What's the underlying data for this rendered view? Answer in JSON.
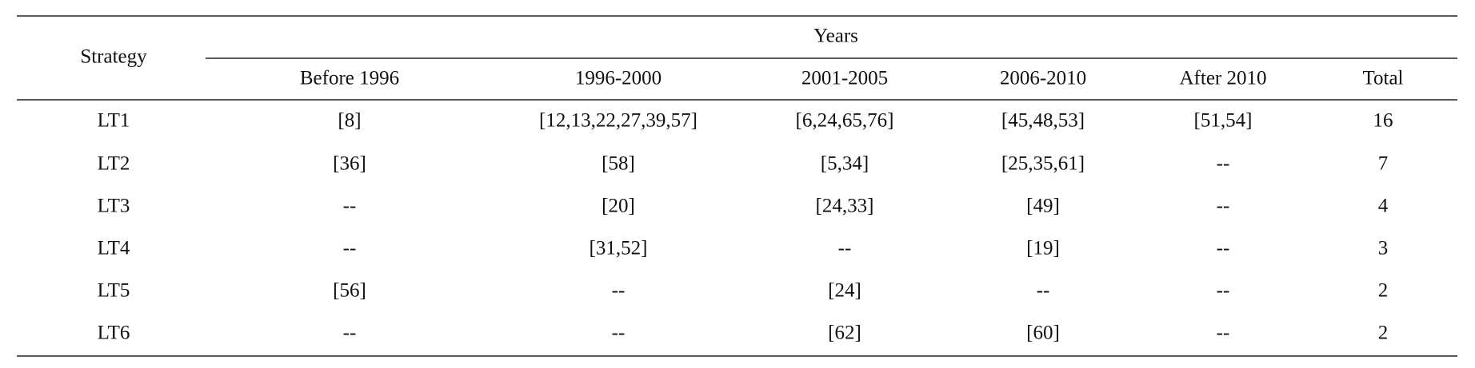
{
  "table": {
    "header": {
      "strategy": "Strategy",
      "years": "Years",
      "columns": [
        "Before 1996",
        "1996-2000",
        "2001-2005",
        "2006-2010",
        "After 2010",
        "Total"
      ]
    },
    "rows": [
      [
        "LT1",
        "[8]",
        "[12,13,22,27,39,57]",
        "[6,24,65,76]",
        "[45,48,53]",
        "[51,54]",
        "16"
      ],
      [
        "LT2",
        "[36]",
        "[58]",
        "[5,34]",
        "[25,35,61]",
        "--",
        "7"
      ],
      [
        "LT3",
        "--",
        "[20]",
        "[24,33]",
        "[49]",
        "--",
        "4"
      ],
      [
        "LT4",
        "--",
        "[31,52]",
        "--",
        "[19]",
        "--",
        "3"
      ],
      [
        "LT5",
        "[56]",
        "--",
        "[24]",
        "--",
        "--",
        "2"
      ],
      [
        "LT6",
        "--",
        "--",
        "[62]",
        "[60]",
        "--",
        "2"
      ]
    ]
  }
}
